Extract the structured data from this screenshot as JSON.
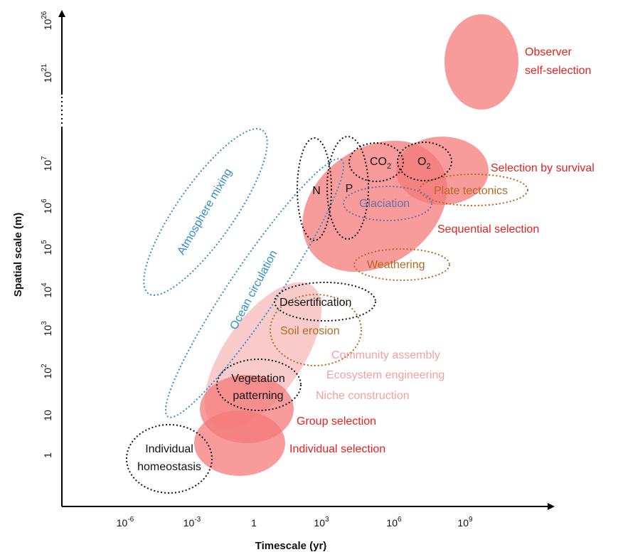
{
  "axes": {
    "x_label": "Timescale (yr)",
    "y_label": "Spatial scale (m)",
    "x_ticks": [
      {
        "base": "10",
        "exp": "-6"
      },
      {
        "base": "10",
        "exp": "-3"
      },
      {
        "base": "1",
        "exp": ""
      },
      {
        "base": "10",
        "exp": "3"
      },
      {
        "base": "10",
        "exp": "6"
      },
      {
        "base": "10",
        "exp": "9"
      }
    ],
    "y_ticks": [
      {
        "base": "1",
        "exp": ""
      },
      {
        "base": "10",
        "exp": ""
      },
      {
        "base": "10",
        "exp": "2"
      },
      {
        "base": "10",
        "exp": "3"
      },
      {
        "base": "10",
        "exp": "4"
      },
      {
        "base": "10",
        "exp": "5"
      },
      {
        "base": "10",
        "exp": "6"
      },
      {
        "base": "10",
        "exp": "7"
      },
      {
        "base": "10",
        "exp": "21"
      },
      {
        "base": "10",
        "exp": "26"
      }
    ],
    "y_axis_break": true
  },
  "colors": {
    "selection_fill": "#f47a7a",
    "selection_text": "#e8201e",
    "niche_text": "#f2a1a1",
    "niche_fill": "#f9c2c2",
    "abiotic": "#b56a1c",
    "physical": "#2f8fc6",
    "biotic": "#111111",
    "glaciation": "#6a6fa8"
  },
  "selection_labels": {
    "observer_line1": "Observer",
    "observer_line2": "self-selection",
    "survival": "Selection by survival",
    "sequential": "Sequential selection",
    "group": "Group selection",
    "individual": "Individual selection"
  },
  "niche_labels": {
    "community": "Community assembly",
    "engineering": "Ecosystem engineering",
    "construction": "Niche construction"
  },
  "process_labels": {
    "atmosphere": "Atmosphere mixing",
    "ocean": "Ocean circulation",
    "n": "N",
    "p": "P",
    "co2_base": "CO",
    "co2_sub": "2",
    "o2_base": "O",
    "o2_sub": "2",
    "plate": "Plate tectonics",
    "glaciation": "Glaciation",
    "weathering": "Weathering",
    "desertification": "Desertification",
    "soil": "Soil erosion",
    "vegetation_line1": "Vegetation",
    "vegetation_line2": "patterning",
    "homeostasis_line1": "Individual",
    "homeostasis_line2": "homeostasis"
  }
}
